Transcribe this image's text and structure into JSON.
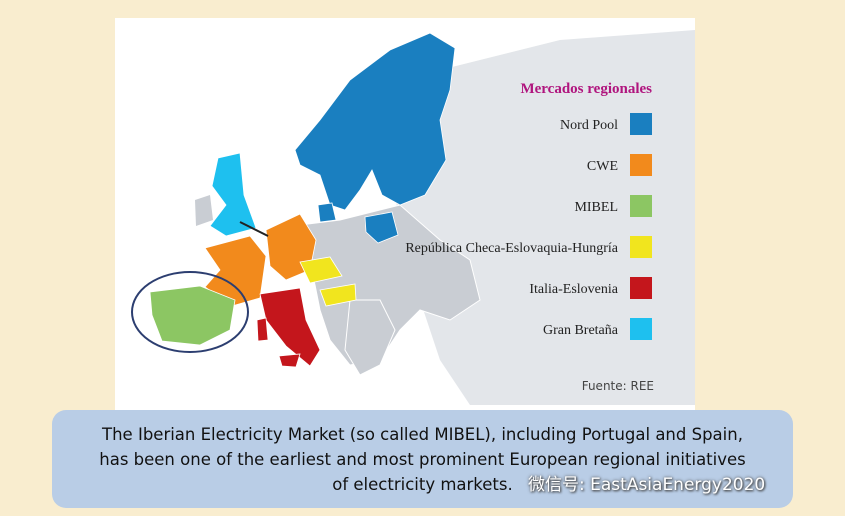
{
  "legend": {
    "title": "Mercados regionales",
    "items": [
      {
        "label": "Nord Pool",
        "color": "#1a7fc0"
      },
      {
        "label": "CWE",
        "color": "#f28a1c"
      },
      {
        "label": "MIBEL",
        "color": "#8cc663"
      },
      {
        "label": "República Checa-Eslovaquia-Hungría",
        "color": "#f1e51e"
      },
      {
        "label": "Italia-Eslovenia",
        "color": "#c4161c"
      },
      {
        "label": "Gran Bretaña",
        "color": "#1ec0ef"
      }
    ]
  },
  "source": "Fuente: REE",
  "caption": [
    "The Iberian Electricity Market (so called MIBEL), including Portugal and Spain,",
    "has been one of the earliest and most prominent European regional initiatives",
    "of electricity markets."
  ],
  "watermark": "微信号: EastAsiaEnergy2020"
}
